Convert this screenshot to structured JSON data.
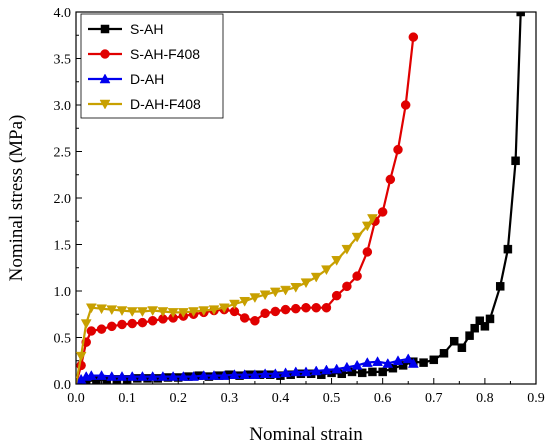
{
  "chart_data": {
    "type": "line",
    "title": "",
    "xlabel": "Nominal strain",
    "ylabel": "Nominal stress (MPa)",
    "xlim": [
      0.0,
      0.9
    ],
    "ylim": [
      0.0,
      4.0
    ],
    "xticks": [
      "0.0",
      "0.1",
      "0.2",
      "0.3",
      "0.4",
      "0.5",
      "0.6",
      "0.7",
      "0.8",
      "0.9"
    ],
    "yticks": [
      "0.0",
      "0.5",
      "1.0",
      "1.5",
      "2.0",
      "2.5",
      "3.0",
      "3.5",
      "4.0"
    ],
    "grid": false,
    "legend_position": "top-left",
    "series": [
      {
        "name": "S-AH",
        "color": "#000000",
        "marker": "square",
        "x": [
          0.0,
          0.02,
          0.04,
          0.06,
          0.08,
          0.1,
          0.12,
          0.14,
          0.16,
          0.18,
          0.2,
          0.22,
          0.24,
          0.26,
          0.28,
          0.3,
          0.32,
          0.34,
          0.36,
          0.38,
          0.4,
          0.42,
          0.44,
          0.46,
          0.48,
          0.5,
          0.52,
          0.54,
          0.56,
          0.58,
          0.6,
          0.62,
          0.64,
          0.66,
          0.68,
          0.7,
          0.72,
          0.74,
          0.755,
          0.77,
          0.78,
          0.79,
          0.8,
          0.81,
          0.83,
          0.845,
          0.86,
          0.87
        ],
        "y": [
          0.0,
          0.03,
          0.04,
          0.05,
          0.05,
          0.05,
          0.06,
          0.06,
          0.06,
          0.07,
          0.07,
          0.08,
          0.09,
          0.08,
          0.09,
          0.1,
          0.09,
          0.1,
          0.1,
          0.1,
          0.09,
          0.1,
          0.11,
          0.11,
          0.1,
          0.12,
          0.11,
          0.13,
          0.12,
          0.13,
          0.13,
          0.17,
          0.2,
          0.24,
          0.23,
          0.26,
          0.33,
          0.46,
          0.39,
          0.52,
          0.6,
          0.68,
          0.62,
          0.7,
          1.05,
          1.45,
          2.4,
          4.0
        ]
      },
      {
        "name": "S-AH-F408",
        "color": "#e00000",
        "marker": "circle",
        "x": [
          0.0,
          0.01,
          0.02,
          0.03,
          0.05,
          0.07,
          0.09,
          0.11,
          0.13,
          0.15,
          0.17,
          0.19,
          0.21,
          0.23,
          0.25,
          0.27,
          0.29,
          0.31,
          0.33,
          0.35,
          0.37,
          0.39,
          0.41,
          0.43,
          0.45,
          0.47,
          0.49,
          0.51,
          0.53,
          0.55,
          0.57,
          0.585,
          0.6,
          0.615,
          0.63,
          0.645,
          0.66
        ],
        "y": [
          0.0,
          0.2,
          0.45,
          0.57,
          0.59,
          0.62,
          0.64,
          0.65,
          0.66,
          0.68,
          0.7,
          0.71,
          0.73,
          0.75,
          0.77,
          0.79,
          0.8,
          0.78,
          0.71,
          0.68,
          0.76,
          0.78,
          0.8,
          0.81,
          0.82,
          0.82,
          0.82,
          0.95,
          1.05,
          1.16,
          1.42,
          1.75,
          1.85,
          2.2,
          2.52,
          3.0,
          3.73
        ]
      },
      {
        "name": "D-AH",
        "color": "#0000ee",
        "marker": "triangle-up",
        "x": [
          0.0,
          0.01,
          0.02,
          0.03,
          0.05,
          0.07,
          0.09,
          0.11,
          0.13,
          0.15,
          0.17,
          0.19,
          0.21,
          0.23,
          0.25,
          0.27,
          0.29,
          0.31,
          0.33,
          0.35,
          0.37,
          0.39,
          0.41,
          0.43,
          0.45,
          0.47,
          0.49,
          0.51,
          0.53,
          0.55,
          0.57,
          0.59,
          0.61,
          0.63,
          0.65,
          0.66
        ],
        "y": [
          0.0,
          0.05,
          0.08,
          0.09,
          0.09,
          0.08,
          0.08,
          0.08,
          0.08,
          0.08,
          0.08,
          0.08,
          0.08,
          0.08,
          0.09,
          0.09,
          0.09,
          0.1,
          0.1,
          0.1,
          0.11,
          0.11,
          0.12,
          0.13,
          0.13,
          0.14,
          0.15,
          0.16,
          0.18,
          0.2,
          0.23,
          0.24,
          0.22,
          0.25,
          0.27,
          0.22
        ]
      },
      {
        "name": "D-AH-F408",
        "color": "#c8a000",
        "marker": "triangle-down",
        "x": [
          0.0,
          0.01,
          0.02,
          0.03,
          0.05,
          0.07,
          0.09,
          0.11,
          0.13,
          0.15,
          0.17,
          0.19,
          0.21,
          0.23,
          0.25,
          0.27,
          0.29,
          0.31,
          0.33,
          0.35,
          0.37,
          0.39,
          0.41,
          0.43,
          0.45,
          0.47,
          0.49,
          0.51,
          0.53,
          0.55,
          0.57,
          0.58
        ],
        "y": [
          0.0,
          0.3,
          0.65,
          0.82,
          0.81,
          0.8,
          0.79,
          0.78,
          0.78,
          0.79,
          0.78,
          0.77,
          0.77,
          0.78,
          0.79,
          0.8,
          0.82,
          0.86,
          0.89,
          0.93,
          0.96,
          0.99,
          1.01,
          1.04,
          1.09,
          1.15,
          1.23,
          1.33,
          1.45,
          1.58,
          1.7,
          1.78
        ]
      }
    ]
  }
}
